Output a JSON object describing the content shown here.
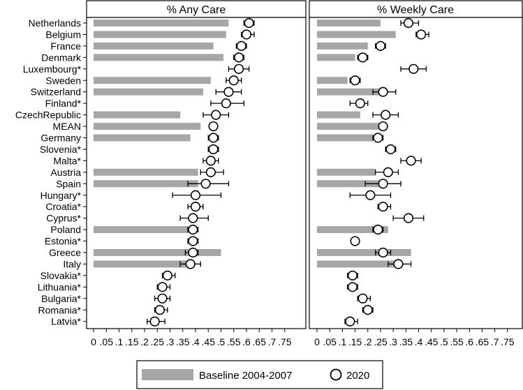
{
  "chart_data": {
    "type": "bar",
    "countries": [
      "Netherlands",
      "Belgium",
      "France",
      "Denmark",
      "Luxembourg*",
      "Sweden",
      "Switzerland",
      "Finland*",
      "CzechRepublic",
      "MEAN",
      "Germany",
      "Slovenia*",
      "Malta*",
      "Austria",
      "Spain",
      "Hungary*",
      "Croatia*",
      "Cyprus*",
      "Poland",
      "Estonia*",
      "Greece",
      "Italy",
      "Slovakia*",
      "Lithuania*",
      "Bulgaria*",
      "Romania*",
      "Latvia*"
    ],
    "xlim": [
      0,
      0.8
    ],
    "tick_labels": [
      "0",
      ".05",
      ".1",
      ".15",
      ".2",
      ".25",
      ".3",
      ".35",
      ".4",
      ".45",
      ".5",
      ".55",
      ".6",
      ".65",
      ".7",
      ".75"
    ],
    "panels": [
      {
        "title": "% Any Care",
        "baseline": [
          0.53,
          0.52,
          0.47,
          0.51,
          null,
          0.46,
          0.43,
          null,
          0.34,
          0.42,
          0.38,
          null,
          null,
          0.41,
          0.41,
          null,
          null,
          null,
          0.38,
          null,
          0.5,
          0.39,
          null,
          null,
          null,
          null,
          null
        ],
        "point": [
          0.61,
          0.6,
          0.58,
          0.57,
          0.57,
          0.55,
          0.53,
          0.52,
          0.48,
          0.47,
          0.47,
          0.47,
          0.46,
          0.46,
          0.44,
          0.4,
          0.4,
          0.39,
          0.39,
          0.39,
          0.39,
          0.38,
          0.29,
          0.27,
          0.27,
          0.26,
          0.24
        ],
        "ci_low": [
          0.59,
          0.58,
          0.56,
          0.55,
          0.53,
          0.52,
          0.48,
          0.46,
          0.43,
          0.46,
          0.45,
          0.45,
          0.43,
          0.42,
          0.37,
          0.31,
          0.37,
          0.34,
          0.37,
          0.37,
          0.36,
          0.34,
          0.27,
          0.25,
          0.24,
          0.24,
          0.21
        ],
        "ci_high": [
          0.63,
          0.63,
          0.6,
          0.59,
          0.61,
          0.58,
          0.58,
          0.59,
          0.53,
          0.48,
          0.49,
          0.49,
          0.49,
          0.51,
          0.53,
          0.5,
          0.43,
          0.45,
          0.41,
          0.41,
          0.41,
          0.42,
          0.32,
          0.3,
          0.3,
          0.29,
          0.28
        ]
      },
      {
        "title": "% Weekly Care",
        "baseline": [
          0.25,
          0.31,
          0.2,
          0.15,
          null,
          0.12,
          0.25,
          null,
          0.17,
          0.25,
          0.22,
          null,
          null,
          0.23,
          0.27,
          null,
          null,
          null,
          0.28,
          null,
          0.37,
          0.31,
          null,
          null,
          null,
          null,
          null
        ],
        "point": [
          0.36,
          0.41,
          0.25,
          0.18,
          0.38,
          0.15,
          0.26,
          0.17,
          0.27,
          0.26,
          0.24,
          0.29,
          0.37,
          0.28,
          0.26,
          0.21,
          0.26,
          0.36,
          0.24,
          0.15,
          0.26,
          0.32,
          0.14,
          0.14,
          0.18,
          0.2,
          0.13
        ],
        "ci_low": [
          0.33,
          0.39,
          0.23,
          0.16,
          0.33,
          0.13,
          0.22,
          0.13,
          0.22,
          0.25,
          0.22,
          0.27,
          0.33,
          0.23,
          0.19,
          0.13,
          0.24,
          0.3,
          0.22,
          0.14,
          0.23,
          0.28,
          0.12,
          0.12,
          0.16,
          0.18,
          0.11
        ],
        "ci_high": [
          0.4,
          0.44,
          0.27,
          0.2,
          0.43,
          0.17,
          0.31,
          0.2,
          0.32,
          0.27,
          0.26,
          0.31,
          0.41,
          0.32,
          0.33,
          0.29,
          0.29,
          0.42,
          0.26,
          0.16,
          0.29,
          0.37,
          0.16,
          0.16,
          0.21,
          0.22,
          0.16
        ]
      }
    ],
    "legend": {
      "baseline_label": "Baseline  2004-2007",
      "point_label": "2020"
    },
    "colors": {
      "bar": "#a6a6a6",
      "marker_fill": "#ffffff",
      "line": "#000000"
    }
  }
}
